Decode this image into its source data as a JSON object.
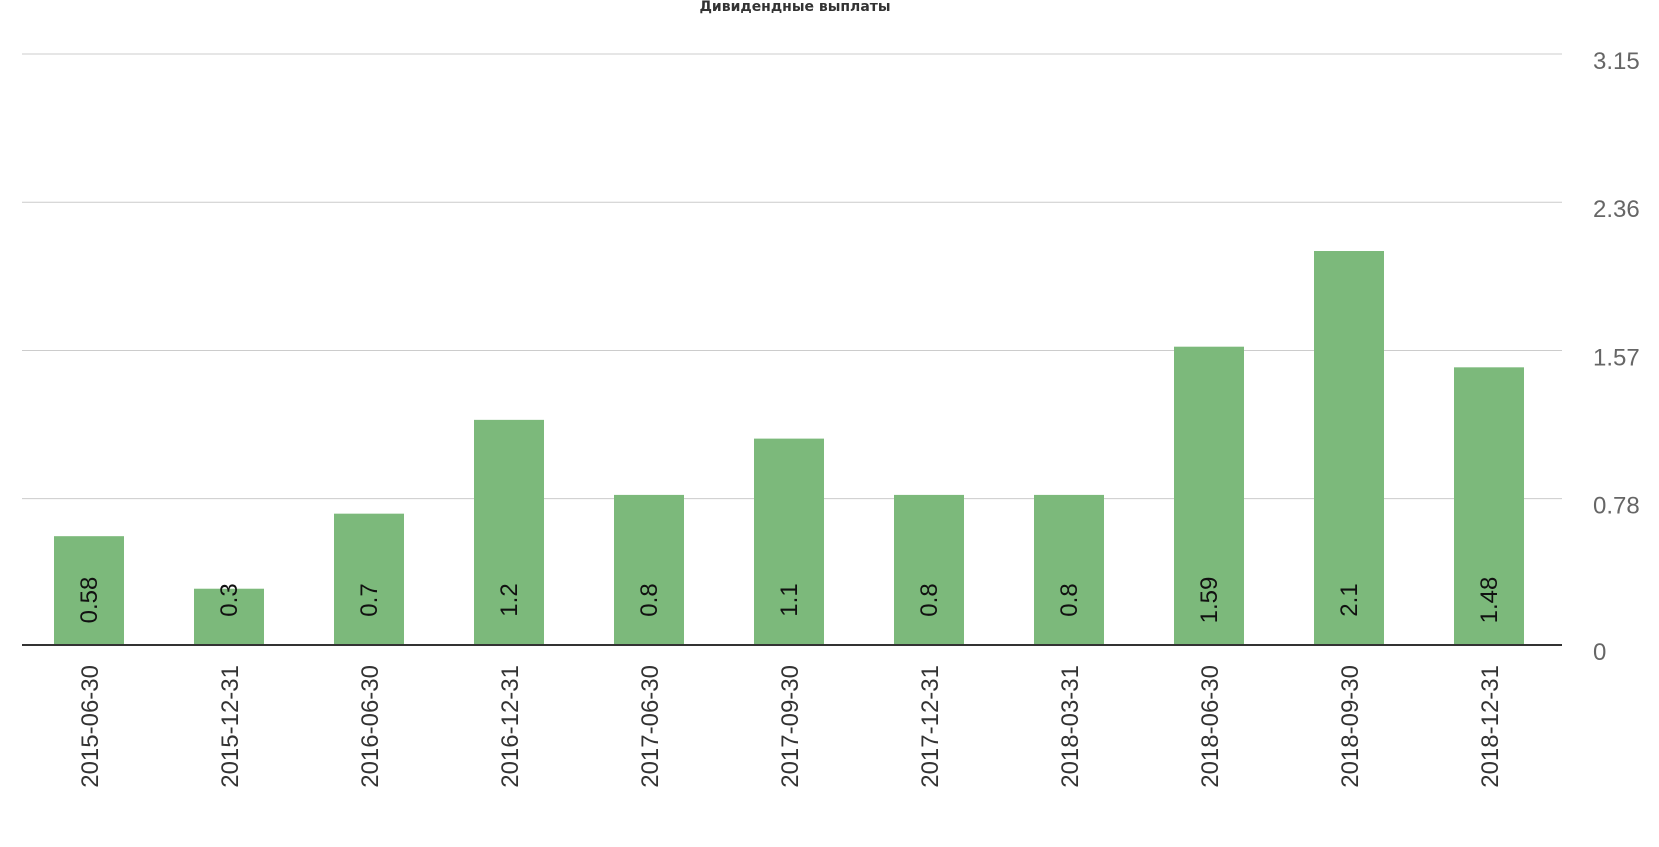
{
  "chart_data": {
    "type": "bar",
    "title": "Дивидендные выплаты",
    "categories": [
      "2015-06-30",
      "2015-12-31",
      "2016-06-30",
      "2016-12-31",
      "2017-06-30",
      "2017-09-30",
      "2017-12-31",
      "2018-03-31",
      "2018-06-30",
      "2018-09-30",
      "2018-12-31"
    ],
    "values": [
      0.58,
      0.3,
      0.7,
      1.2,
      0.8,
      1.1,
      0.8,
      0.8,
      1.59,
      2.1,
      1.48
    ],
    "data_labels": [
      "0.58",
      "0.3",
      "0.7",
      "1.2",
      "0.8",
      "1.1",
      "0.8",
      "0.8",
      "1.59",
      "2.1",
      "1.48"
    ],
    "ylim": [
      0,
      3.15
    ],
    "yticks": [
      0,
      0.78,
      1.57,
      2.36,
      3.15
    ],
    "ytick_labels": [
      "0",
      "0.78",
      "1.57",
      "2.36",
      "3.15"
    ],
    "yaxis_side": "right",
    "grid": true,
    "legend": false,
    "bar_color": "#7cb97b",
    "xlabel": "",
    "ylabel": ""
  }
}
